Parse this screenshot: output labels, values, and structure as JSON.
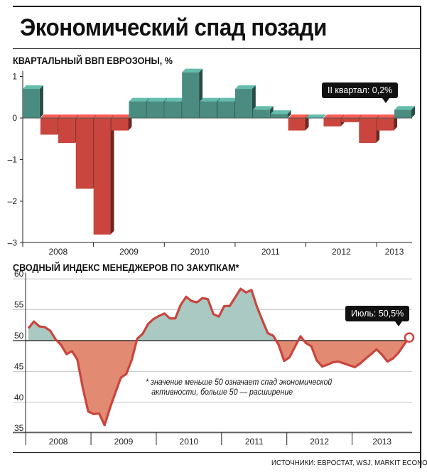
{
  "title": "Экономический спад позади",
  "sources": "ИСТОЧНИКИ: ЕВРОСТАТ, WSJ, MARKIT ECONOMICS",
  "chart_data": [
    {
      "type": "bar",
      "title": "КВАРТАЛЬНЫЙ ВВП ЕВРОЗОНЫ, %",
      "categories": [
        "2008 Q1",
        "2008 Q2",
        "2008 Q3",
        "2008 Q4",
        "2009 Q1",
        "2009 Q2",
        "2009 Q3",
        "2009 Q4",
        "2010 Q1",
        "2010 Q2",
        "2010 Q3",
        "2010 Q4",
        "2011 Q1",
        "2011 Q2",
        "2011 Q3",
        "2011 Q4",
        "2012 Q1",
        "2012 Q2",
        "2012 Q3",
        "2012 Q4",
        "2013 Q1",
        "2013 Q2"
      ],
      "values": [
        0.7,
        -0.4,
        -0.6,
        -1.7,
        -2.8,
        -0.3,
        0.4,
        0.4,
        0.4,
        1.1,
        0.4,
        0.4,
        0.7,
        0.2,
        0.1,
        -0.3,
        0.0,
        -0.2,
        -0.1,
        -0.6,
        -0.3,
        0.2
      ],
      "ylim": [
        -3,
        1.2
      ],
      "yticks": [
        "1",
        "0",
        "–1",
        "–2",
        "–3"
      ],
      "ytick_values": [
        1,
        0,
        -1,
        -2,
        -3
      ],
      "xticks": [
        "2008",
        "2009",
        "2010",
        "2011",
        "2012",
        "2013"
      ],
      "colors": {
        "positive": "#4a8c80",
        "negative": "#c9453e"
      },
      "callout": "II квартал: 0,2%"
    },
    {
      "type": "area",
      "title": "СВОДНЫЙ ИНДЕКС МЕНЕДЖЕРОВ ПО ЗАКУПКАМ*",
      "baseline": 50,
      "ylim": [
        35,
        61
      ],
      "yticks": [
        "60",
        "55",
        "50",
        "45",
        "40",
        "35"
      ],
      "ytick_values": [
        60,
        55,
        50,
        45,
        40,
        35
      ],
      "xticks": [
        "2008",
        "2009",
        "2010",
        "2011",
        "2012",
        "2013"
      ],
      "x_start": "2008-01",
      "values": [
        52.0,
        53.1,
        52.3,
        52.2,
        51.6,
        50.2,
        49.3,
        47.8,
        48.3,
        46.9,
        42.3,
        38.5,
        38.1,
        38.2,
        36.3,
        39.1,
        41.6,
        44.0,
        44.6,
        46.9,
        50.3,
        51.1,
        52.7,
        53.5,
        54.0,
        54.4,
        53.6,
        53.6,
        55.8,
        57.1,
        56.4,
        56.2,
        56.9,
        56.7,
        54.3,
        53.9,
        55.6,
        55.6,
        57.0,
        58.4,
        57.8,
        58.2,
        55.5,
        53.3,
        51.2,
        50.8,
        49.3,
        46.7,
        47.3,
        49.0,
        50.7,
        49.6,
        49.1,
        46.8,
        45.8,
        46.1,
        46.5,
        46.6,
        46.3,
        46.0,
        45.7,
        46.3,
        47.1,
        47.8,
        48.6,
        47.7,
        46.6,
        47.1,
        48.0,
        49.3,
        50.5
      ],
      "colors": {
        "above": "#a9c9c2",
        "below": "#e28a72",
        "line": "#c9453e"
      },
      "callout": "Июль: 50,5%",
      "note_line1": "* значение меньше 50 означает спад экономической",
      "note_line2": "активности, больше 50 — расширение"
    }
  ]
}
